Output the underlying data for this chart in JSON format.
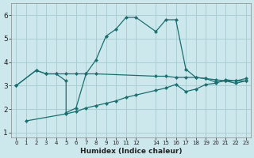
{
  "xlabel": "Humidex (Indice chaleur)",
  "bg_color": "#cce8ec",
  "grid_color": "#aacdd4",
  "line_color": "#1a7070",
  "xlim": [
    -0.5,
    23.5
  ],
  "ylim": [
    0.8,
    6.5
  ],
  "yticks": [
    1,
    2,
    3,
    4,
    5,
    6
  ],
  "xtick_positions": [
    0,
    1,
    2,
    3,
    4,
    5,
    6,
    7,
    8,
    9,
    10,
    11,
    12,
    14,
    15,
    16,
    17,
    18,
    19,
    20,
    21,
    22,
    23
  ],
  "xtick_labels": [
    "0",
    "1",
    "2",
    "3",
    "4",
    "5",
    "6",
    "7",
    "8",
    "9",
    "10",
    "11",
    "12",
    "14",
    "15",
    "16",
    "17",
    "18",
    "19",
    "20",
    "21",
    "22",
    "23"
  ],
  "line1_x": [
    0,
    2,
    3,
    4,
    5,
    5,
    6,
    7,
    8,
    9,
    10,
    11,
    12,
    14,
    15,
    16,
    17,
    18,
    19,
    20,
    21,
    22,
    23
  ],
  "line1_y": [
    3.0,
    3.65,
    3.5,
    3.5,
    3.2,
    1.85,
    2.05,
    3.5,
    4.1,
    5.1,
    5.4,
    5.9,
    5.9,
    5.3,
    5.8,
    5.8,
    3.7,
    3.35,
    3.3,
    3.15,
    3.2,
    3.1,
    3.2
  ],
  "line2_x": [
    0,
    2,
    3,
    4,
    5,
    6,
    7,
    8,
    14,
    15,
    16,
    17,
    18,
    19,
    20,
    21,
    22,
    23
  ],
  "line2_y": [
    3.0,
    3.65,
    3.5,
    3.5,
    3.5,
    3.5,
    3.5,
    3.5,
    3.4,
    3.4,
    3.35,
    3.35,
    3.35,
    3.3,
    3.25,
    3.2,
    3.2,
    3.2
  ],
  "line3_x": [
    1,
    5,
    6,
    7,
    8,
    9,
    10,
    11,
    12,
    14,
    15,
    16,
    17,
    18,
    19,
    20,
    21,
    22,
    23
  ],
  "line3_y": [
    1.5,
    1.8,
    1.9,
    2.05,
    2.15,
    2.25,
    2.35,
    2.5,
    2.6,
    2.8,
    2.9,
    3.05,
    2.75,
    2.85,
    3.05,
    3.1,
    3.25,
    3.2,
    3.3
  ]
}
